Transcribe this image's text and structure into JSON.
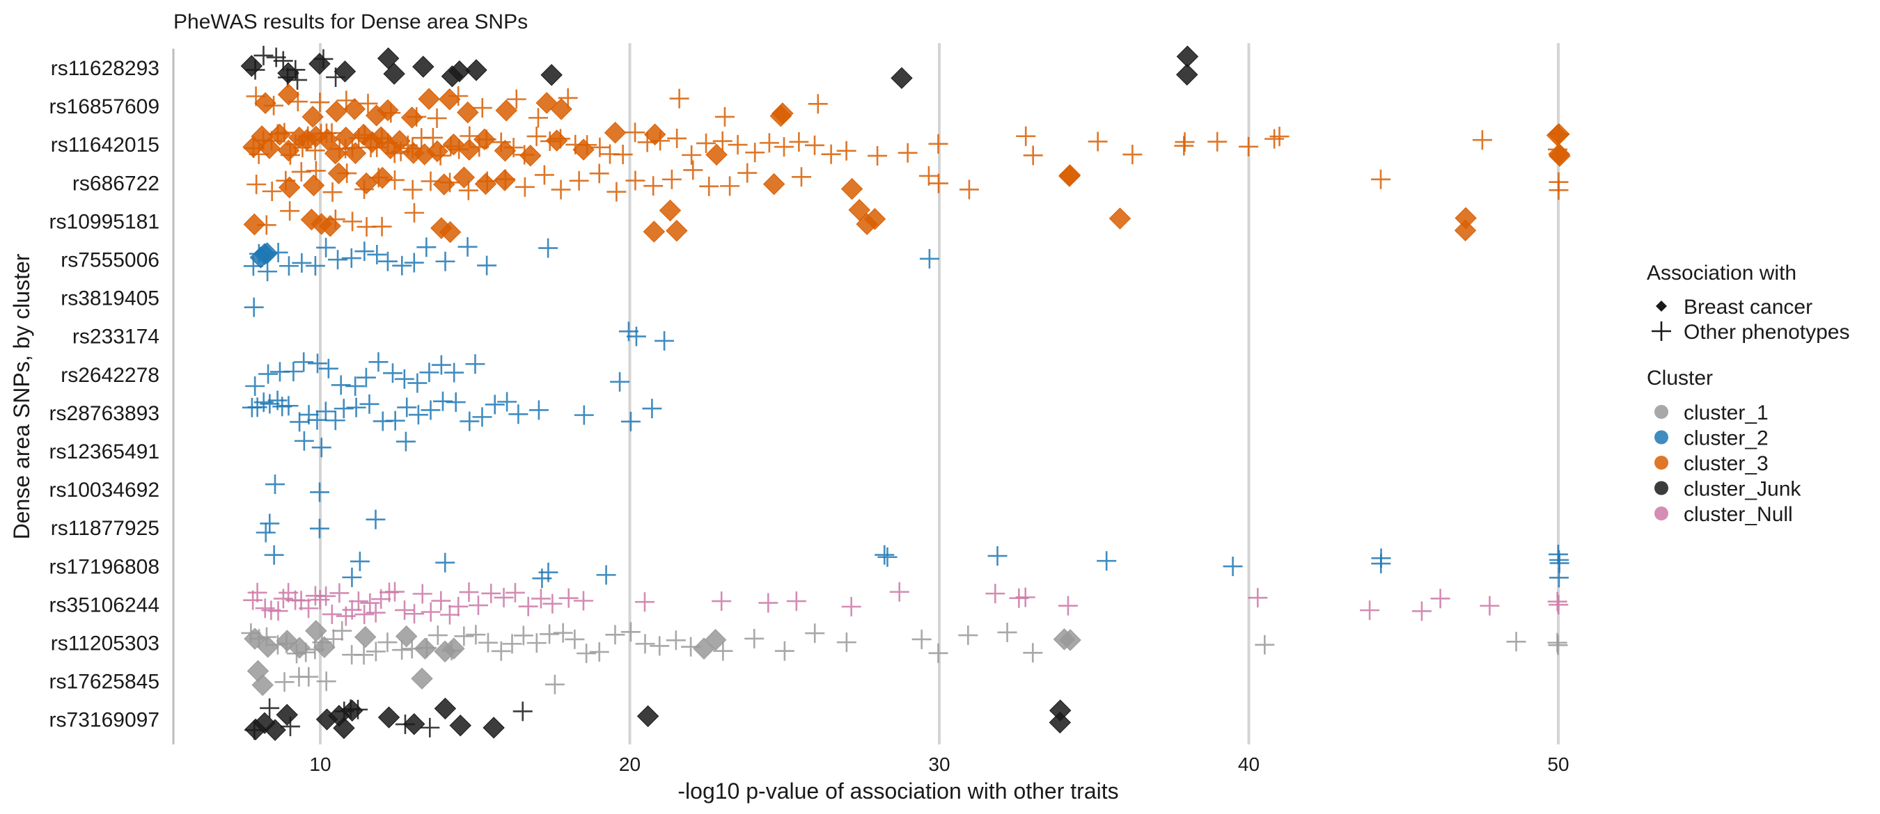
{
  "chart_data": {
    "type": "scatter",
    "title": "PheWAS results for Dense area SNPs",
    "xlabel": "-log10 p-value of association with other traits",
    "ylabel": "Dense area SNPs, by cluster",
    "xlim": [
      5.5,
      52
    ],
    "x_ticks": [
      10,
      20,
      30,
      40,
      50
    ],
    "x_tick_labels": [
      "10",
      "20",
      "30",
      "40",
      "50"
    ],
    "categories": [
      "rs11628293",
      "rs16857609",
      "rs11642015",
      "rs686722",
      "rs10995181",
      "rs7555006",
      "rs3819405",
      "rs233174",
      "rs2642278",
      "rs28763893",
      "rs12365491",
      "rs10034692",
      "rs11877925",
      "rs17196808",
      "rs35106244",
      "rs11205303",
      "rs17625845",
      "rs73169097"
    ],
    "grid": "vertical major only",
    "legend_position": "right",
    "legend": {
      "shape_title": "Association with",
      "shape_entries": [
        {
          "label": "Breast cancer",
          "shape": "diamond"
        },
        {
          "label": "Other phenotypes",
          "shape": "plus"
        }
      ],
      "color_title": "Cluster",
      "color_entries": [
        {
          "label": "cluster_1",
          "color": "#999999"
        },
        {
          "label": "cluster_2",
          "color": "#1f78b4"
        },
        {
          "label": "cluster_3",
          "color": "#d95f02"
        },
        {
          "label": "cluster_Junk",
          "color": "#1a1a1a"
        },
        {
          "label": "cluster_Null",
          "color": "#cc79a7"
        }
      ]
    },
    "series": [
      {
        "snp": "rs11628293",
        "cluster": "cluster_Junk",
        "color": "#1a1a1a",
        "breast_cancer": [
          7.8,
          10.0,
          9.0,
          10.8,
          12.4,
          12.2,
          13.3,
          14.3,
          14.5,
          15.0,
          17.5,
          28.8,
          38.0,
          38.0
        ],
        "other": [
          8.6,
          8.9,
          9.2,
          10.1,
          10.5,
          7.9,
          8.2,
          8.8,
          9.3
        ]
      },
      {
        "snp": "rs16857609",
        "cluster": "cluster_3",
        "color": "#d95f02",
        "breast_cancer": [
          8.2,
          9.0,
          9.8,
          10.5,
          11.1,
          11.8,
          12.2,
          13.0,
          13.5,
          14.2,
          14.8,
          16.0,
          17.3,
          17.8,
          24.9,
          24.9
        ],
        "other": [
          7.9,
          8.5,
          9.3,
          10.0,
          10.8,
          11.5,
          12.3,
          13.1,
          13.8,
          14.5,
          15.2,
          16.3,
          17.0,
          18.0,
          21.6,
          23.1,
          26.1
        ]
      },
      {
        "snp": "rs11642015",
        "cluster": "cluster_3",
        "color": "#d95f02",
        "breast_cancer": [
          7.8,
          8.1,
          8.4,
          8.7,
          9.0,
          9.3,
          9.6,
          9.9,
          10.2,
          10.5,
          10.8,
          11.1,
          11.4,
          11.7,
          12.0,
          12.3,
          12.6,
          13.0,
          13.4,
          13.8,
          14.3,
          14.8,
          15.3,
          16.0,
          16.8,
          17.6,
          18.5,
          19.5,
          20.8,
          22.8,
          50.0,
          50.0,
          50.0,
          50.0
        ],
        "other": [
          7.8,
          8.0,
          8.2,
          8.4,
          8.6,
          8.8,
          9.0,
          9.2,
          9.4,
          9.6,
          9.8,
          10.0,
          10.2,
          10.4,
          10.6,
          10.8,
          11.0,
          11.2,
          11.4,
          11.6,
          11.8,
          12.0,
          12.2,
          12.4,
          12.6,
          12.8,
          13.0,
          13.3,
          13.6,
          13.9,
          14.2,
          14.5,
          14.8,
          15.1,
          15.4,
          15.8,
          16.2,
          16.6,
          17.0,
          17.4,
          17.8,
          18.2,
          18.6,
          19.0,
          19.4,
          19.8,
          20.2,
          20.6,
          21.0,
          21.5,
          22.0,
          22.5,
          23.0,
          23.5,
          24.0,
          24.5,
          25.0,
          25.5,
          26.0,
          26.5,
          27.0,
          28.0,
          29.0,
          30.0,
          32.8,
          33.0,
          35.1,
          36.2,
          37.9,
          37.9,
          39.0,
          40.0,
          40.8,
          41.0,
          47.5,
          50.0,
          50.0
        ]
      },
      {
        "snp": "rs686722",
        "cluster": "cluster_3",
        "color": "#d95f02",
        "breast_cancer": [
          9.0,
          9.8,
          10.6,
          11.5,
          12.0,
          14.0,
          14.6,
          15.3,
          16.0,
          24.7,
          27.2,
          34.2,
          34.2
        ],
        "other": [
          7.9,
          8.4,
          8.9,
          9.4,
          9.9,
          10.4,
          10.9,
          11.4,
          11.9,
          12.4,
          13.0,
          13.6,
          14.2,
          14.8,
          15.4,
          16.0,
          16.6,
          17.2,
          17.8,
          18.4,
          19.0,
          19.6,
          20.2,
          20.8,
          21.4,
          22.0,
          22.6,
          23.2,
          23.8,
          25.5,
          29.7,
          30.0,
          31.0,
          44.3,
          50.0,
          50.0
        ]
      },
      {
        "snp": "rs10995181",
        "cluster": "cluster_3",
        "color": "#d95f02",
        "breast_cancer": [
          7.9,
          9.7,
          10.0,
          10.3,
          13.9,
          14.2,
          20.8,
          21.5,
          21.3,
          27.4,
          27.9,
          27.7,
          35.8,
          47.0,
          47.0
        ],
        "other": [
          8.3,
          9.0,
          10.5,
          11.0,
          11.5,
          12.0,
          13.0
        ]
      },
      {
        "snp": "rs7555006",
        "cluster": "cluster_2",
        "color": "#1f78b4",
        "breast_cancer": [
          8.1,
          8.2,
          8.3
        ],
        "other": [
          7.8,
          8.0,
          8.3,
          8.6,
          9.0,
          9.4,
          9.8,
          10.2,
          10.6,
          11.0,
          11.4,
          11.8,
          12.2,
          12.6,
          13.0,
          13.4,
          14.0,
          14.8,
          15.4,
          17.4,
          29.7
        ]
      },
      {
        "snp": "rs3819405",
        "cluster": "cluster_2",
        "color": "#1f78b4",
        "breast_cancer": [],
        "other": [
          7.9
        ]
      },
      {
        "snp": "rs233174",
        "cluster": "cluster_2",
        "color": "#1f78b4",
        "breast_cancer": [],
        "other": [
          20.0,
          20.2,
          21.1
        ]
      },
      {
        "snp": "rs2642278",
        "cluster": "cluster_2",
        "color": "#1f78b4",
        "breast_cancer": [],
        "other": [
          7.9,
          8.3,
          8.7,
          9.1,
          9.5,
          9.9,
          10.3,
          10.7,
          11.1,
          11.5,
          11.9,
          12.3,
          12.7,
          13.1,
          13.5,
          13.9,
          14.3,
          15.0,
          19.7
        ]
      },
      {
        "snp": "rs28763893",
        "cluster": "cluster_2",
        "color": "#1f78b4",
        "breast_cancer": [],
        "other": [
          7.8,
          8.0,
          8.2,
          8.4,
          8.6,
          8.8,
          9.0,
          9.3,
          9.6,
          9.9,
          10.2,
          10.5,
          10.8,
          11.2,
          11.6,
          12.0,
          12.4,
          12.8,
          13.2,
          13.6,
          14.0,
          14.4,
          14.8,
          15.2,
          15.6,
          16.0,
          16.4,
          17.1,
          18.5,
          20.0,
          20.7
        ]
      },
      {
        "snp": "rs12365491",
        "cluster": "cluster_2",
        "color": "#1f78b4",
        "breast_cancer": [],
        "other": [
          9.5,
          10.0,
          12.8
        ]
      },
      {
        "snp": "rs10034692",
        "cluster": "cluster_2",
        "color": "#1f78b4",
        "breast_cancer": [],
        "other": [
          8.5,
          10.0
        ]
      },
      {
        "snp": "rs11877925",
        "cluster": "cluster_2",
        "color": "#1f78b4",
        "breast_cancer": [],
        "other": [
          8.2,
          8.4,
          10.0,
          11.8
        ]
      },
      {
        "snp": "rs17196808",
        "cluster": "cluster_2",
        "color": "#1f78b4",
        "breast_cancer": [],
        "other": [
          8.5,
          11.0,
          11.3,
          14.0,
          17.2,
          17.4,
          19.2,
          28.2,
          28.3,
          31.9,
          35.4,
          39.5,
          44.3,
          44.3,
          50.0,
          50.0,
          50.0,
          50.0
        ]
      },
      {
        "snp": "rs35106244",
        "cluster": "cluster_Null",
        "color": "#cc79a7",
        "breast_cancer": [],
        "other": [
          7.8,
          8.0,
          8.2,
          8.4,
          8.6,
          8.8,
          9.0,
          9.2,
          9.4,
          9.6,
          9.8,
          10.0,
          10.2,
          10.4,
          10.6,
          10.8,
          11.0,
          11.2,
          11.4,
          11.6,
          11.8,
          12.0,
          12.2,
          12.4,
          12.7,
          13.0,
          13.3,
          13.6,
          13.9,
          14.2,
          14.5,
          14.8,
          15.1,
          15.5,
          15.9,
          16.3,
          16.7,
          17.1,
          17.5,
          18.0,
          18.5,
          20.5,
          23.0,
          24.5,
          25.4,
          27.2,
          28.7,
          31.8,
          32.6,
          32.8,
          34.2,
          40.3,
          43.9,
          45.6,
          46.2,
          47.8,
          50.0,
          50.0
        ]
      },
      {
        "snp": "rs11205303",
        "cluster": "cluster_1",
        "color": "#999999",
        "breast_cancer": [
          7.9,
          8.3,
          8.9,
          9.3,
          9.9,
          10.1,
          11.5,
          12.8,
          13.4,
          14.0,
          14.3,
          22.4,
          22.8,
          34.0,
          34.2
        ],
        "other": [
          7.8,
          8.0,
          8.3,
          8.6,
          8.9,
          9.2,
          9.5,
          9.8,
          10.1,
          10.4,
          10.7,
          11.0,
          11.4,
          11.8,
          12.2,
          12.6,
          13.0,
          13.4,
          13.8,
          14.2,
          14.6,
          15.0,
          15.4,
          15.8,
          16.2,
          16.6,
          17.0,
          17.4,
          17.8,
          18.2,
          18.6,
          19.0,
          19.5,
          20.0,
          20.5,
          21.0,
          21.5,
          22.0,
          23.0,
          24.0,
          25.0,
          26.0,
          27.0,
          29.4,
          30.0,
          30.9,
          32.2,
          33.0,
          40.5,
          48.6,
          50.0,
          50.0
        ]
      },
      {
        "snp": "rs17625845",
        "cluster": "cluster_1",
        "color": "#999999",
        "breast_cancer": [
          8.0,
          8.1,
          13.3
        ],
        "other": [
          8.8,
          9.3,
          9.6,
          10.2,
          17.6
        ]
      },
      {
        "snp": "rs73169097",
        "cluster": "cluster_Junk",
        "color": "#1a1a1a",
        "breast_cancer": [
          7.9,
          8.2,
          8.5,
          8.9,
          10.6,
          10.8,
          11.0,
          10.2,
          12.2,
          13.0,
          14.0,
          14.5,
          15.6,
          20.6,
          33.9,
          33.9
        ],
        "other": [
          7.9,
          8.4,
          9.0,
          10.8,
          11.0,
          11.2,
          12.7,
          13.5,
          16.5
        ]
      }
    ]
  }
}
